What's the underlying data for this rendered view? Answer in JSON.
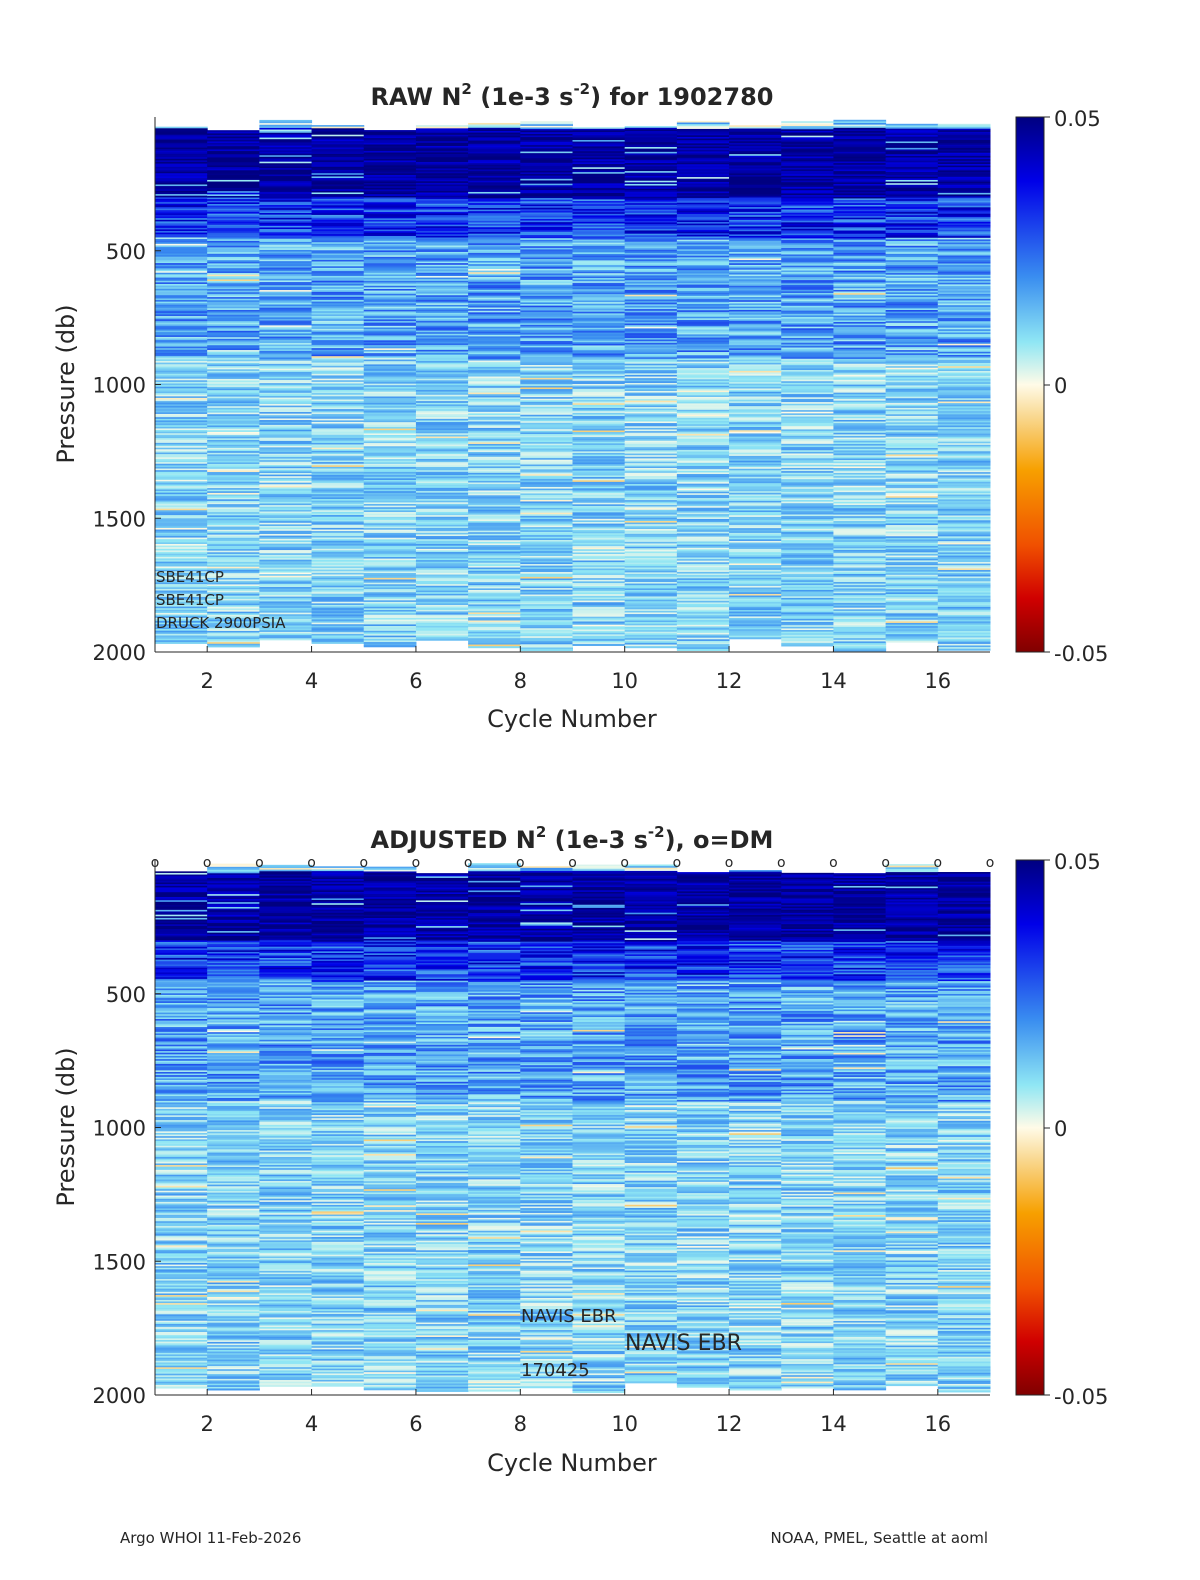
{
  "chart_data": [
    {
      "type": "heatmap",
      "title_main": "RAW N",
      "title_sup1": "2",
      "title_mid": " (1e-3 s",
      "title_sup2": "-2",
      "title_end": ") for 1902780",
      "xlabel": "Cycle Number",
      "ylabel": "Pressure (db)",
      "xticks": [
        "2",
        "4",
        "6",
        "8",
        "10",
        "12",
        "14",
        "16"
      ],
      "yticks": [
        "500",
        "1000",
        "1500",
        "2000"
      ],
      "xlim": [
        1,
        17
      ],
      "ylim": [
        0,
        2000
      ],
      "cycles": [
        1,
        2,
        3,
        4,
        5,
        6,
        7,
        8,
        9,
        10,
        11,
        12,
        13,
        14,
        15,
        16
      ],
      "colorbar": {
        "max": "0.05",
        "mid": "0",
        "min": "-0.05"
      },
      "annotations": [
        "SBE41CP",
        "SBE41CP",
        "DRUCK 2900PSIA"
      ]
    },
    {
      "type": "heatmap",
      "title_main": "ADJUSTED N",
      "title_sup1": "2",
      "title_mid": " (1e-3 s",
      "title_sup2": "-2",
      "title_end": "), o=DM",
      "xlabel": "Cycle Number",
      "ylabel": "Pressure (db)",
      "xticks": [
        "2",
        "4",
        "6",
        "8",
        "10",
        "12",
        "14",
        "16"
      ],
      "yticks": [
        "500",
        "1000",
        "1500",
        "2000"
      ],
      "xlim": [
        1,
        17
      ],
      "ylim": [
        0,
        2000
      ],
      "cycles": [
        1,
        2,
        3,
        4,
        5,
        6,
        7,
        8,
        9,
        10,
        11,
        12,
        13,
        14,
        15,
        16
      ],
      "dm_marker": "o",
      "dm_cycles": [
        1,
        2,
        3,
        4,
        5,
        6,
        7,
        8,
        9,
        10,
        11,
        12,
        13,
        14,
        15,
        16,
        17
      ],
      "colorbar": {
        "max": "0.05",
        "mid": "0",
        "min": "-0.05"
      },
      "annotations": [
        "NAVIS EBR",
        "NAVIS EBR",
        "170425"
      ]
    }
  ],
  "footer": {
    "left": "Argo WHOI 11-Feb-2026",
    "right": "NOAA, PMEL, Seattle at aoml"
  },
  "colors": {
    "deep_blue": "#00008f",
    "blue": "#2a4fe0",
    "light_blue": "#6fd0f0",
    "cyan_pale": "#c8f4f8",
    "near_zero": "#fbf7e0",
    "orange": "#f7a000",
    "dark_red": "#800000"
  }
}
